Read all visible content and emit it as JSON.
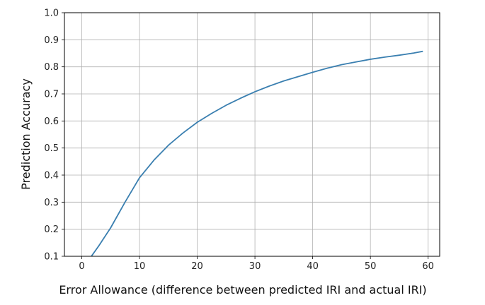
{
  "chart_data": {
    "type": "line",
    "title": "",
    "xlabel": "Error Allowance (difference between predicted IRI and actual IRI)",
    "ylabel": "Prediction Accuracy",
    "xlim": [
      -3,
      62
    ],
    "ylim": [
      0.1,
      1.0
    ],
    "x_ticks": [
      0,
      10,
      20,
      30,
      40,
      50,
      60
    ],
    "x_tick_labels": [
      "0",
      "10",
      "20",
      "30",
      "40",
      "50",
      "60"
    ],
    "y_ticks": [
      0.1,
      0.2,
      0.3,
      0.4,
      0.5,
      0.6,
      0.7,
      0.8,
      0.9,
      1.0
    ],
    "y_tick_labels": [
      "0.1",
      "0.2",
      "0.3",
      "0.4",
      "0.5",
      "0.6",
      "0.7",
      "0.8",
      "0.9",
      "1.0"
    ],
    "grid": true,
    "legend": "none",
    "series": [
      {
        "color": "#3a7fb0",
        "x": [
          1.5,
          3,
          5,
          7.5,
          10,
          12.5,
          15,
          17.5,
          20,
          22.5,
          25,
          27.5,
          30,
          32.5,
          35,
          37.5,
          40,
          42.5,
          45,
          47.5,
          50,
          52.5,
          55,
          57.5,
          59
        ],
        "y": [
          0.095,
          0.14,
          0.205,
          0.3,
          0.39,
          0.455,
          0.51,
          0.555,
          0.595,
          0.628,
          0.658,
          0.684,
          0.708,
          0.729,
          0.748,
          0.764,
          0.78,
          0.795,
          0.808,
          0.818,
          0.828,
          0.836,
          0.843,
          0.851,
          0.857
        ]
      }
    ]
  }
}
